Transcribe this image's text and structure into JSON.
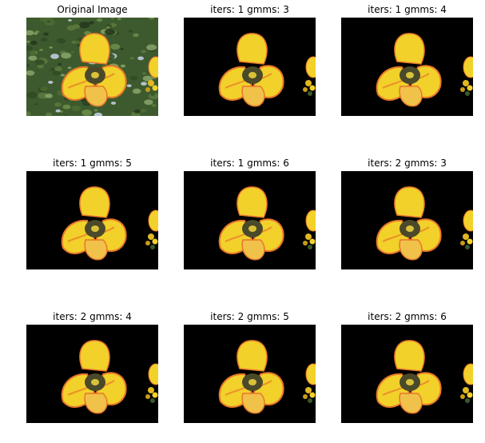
{
  "panels": [
    {
      "title": "Original Image",
      "background": "garden"
    },
    {
      "title": "iters: 1 gmms: 3",
      "background": "black"
    },
    {
      "title": "iters: 1 gmms: 4",
      "background": "black"
    },
    {
      "title": "iters: 1 gmms: 5",
      "background": "black"
    },
    {
      "title": "iters: 1 gmms: 6",
      "background": "black"
    },
    {
      "title": "iters: 2 gmms: 3",
      "background": "black"
    },
    {
      "title": "iters: 2 gmms: 4",
      "background": "black"
    },
    {
      "title": "iters: 2 gmms: 5",
      "background": "black"
    },
    {
      "title": "iters: 2 gmms: 6",
      "background": "black"
    }
  ],
  "colors": {
    "petal": "#f2d12a",
    "petal_edge": "#e8762a",
    "center": "#4a4a2a",
    "garden": "#3d5a2e",
    "mask": "#000000"
  }
}
